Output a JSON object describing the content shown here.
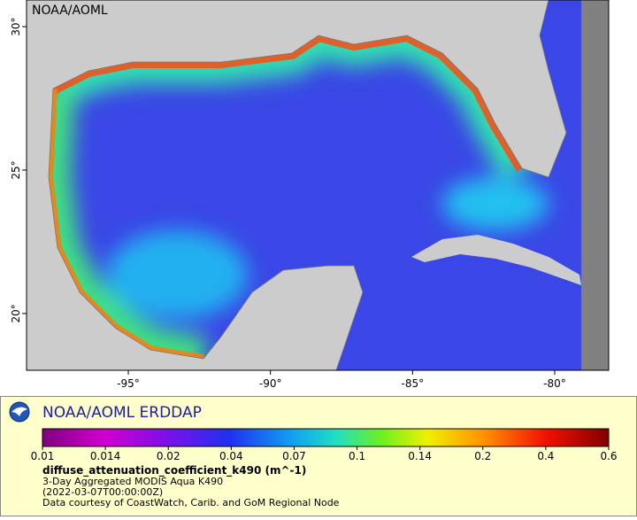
{
  "map": {
    "watermark": "NOAA/AOML",
    "xlim": [
      -98.58,
      -78.1
    ],
    "ylim": [
      18.02,
      30.93
    ],
    "xticks": [
      {
        "value": -95,
        "label": "-95°"
      },
      {
        "value": -90,
        "label": "-90°"
      },
      {
        "value": -85,
        "label": "-85°"
      },
      {
        "value": -80,
        "label": "-80°"
      }
    ],
    "yticks": [
      {
        "value": 30,
        "label": "30°"
      },
      {
        "value": 25,
        "label": "25°"
      },
      {
        "value": 20,
        "label": "20°"
      }
    ]
  },
  "legend": {
    "title": "NOAA/AOML ERDDAP",
    "colorbar_ticks": [
      0.01,
      0.014,
      0.02,
      0.04,
      0.07,
      0.1,
      0.14,
      0.2,
      0.4,
      0.6
    ],
    "variable": "diffuse_attenuation_coefficient_k490 (m^-1)",
    "lines": [
      "3-Day Aggregated MODIS Aqua K490",
      "(2022-03-07T00:00:00Z)",
      "Data courtesy of CoastWatch, Carib. and GoM Regional Node"
    ]
  }
}
